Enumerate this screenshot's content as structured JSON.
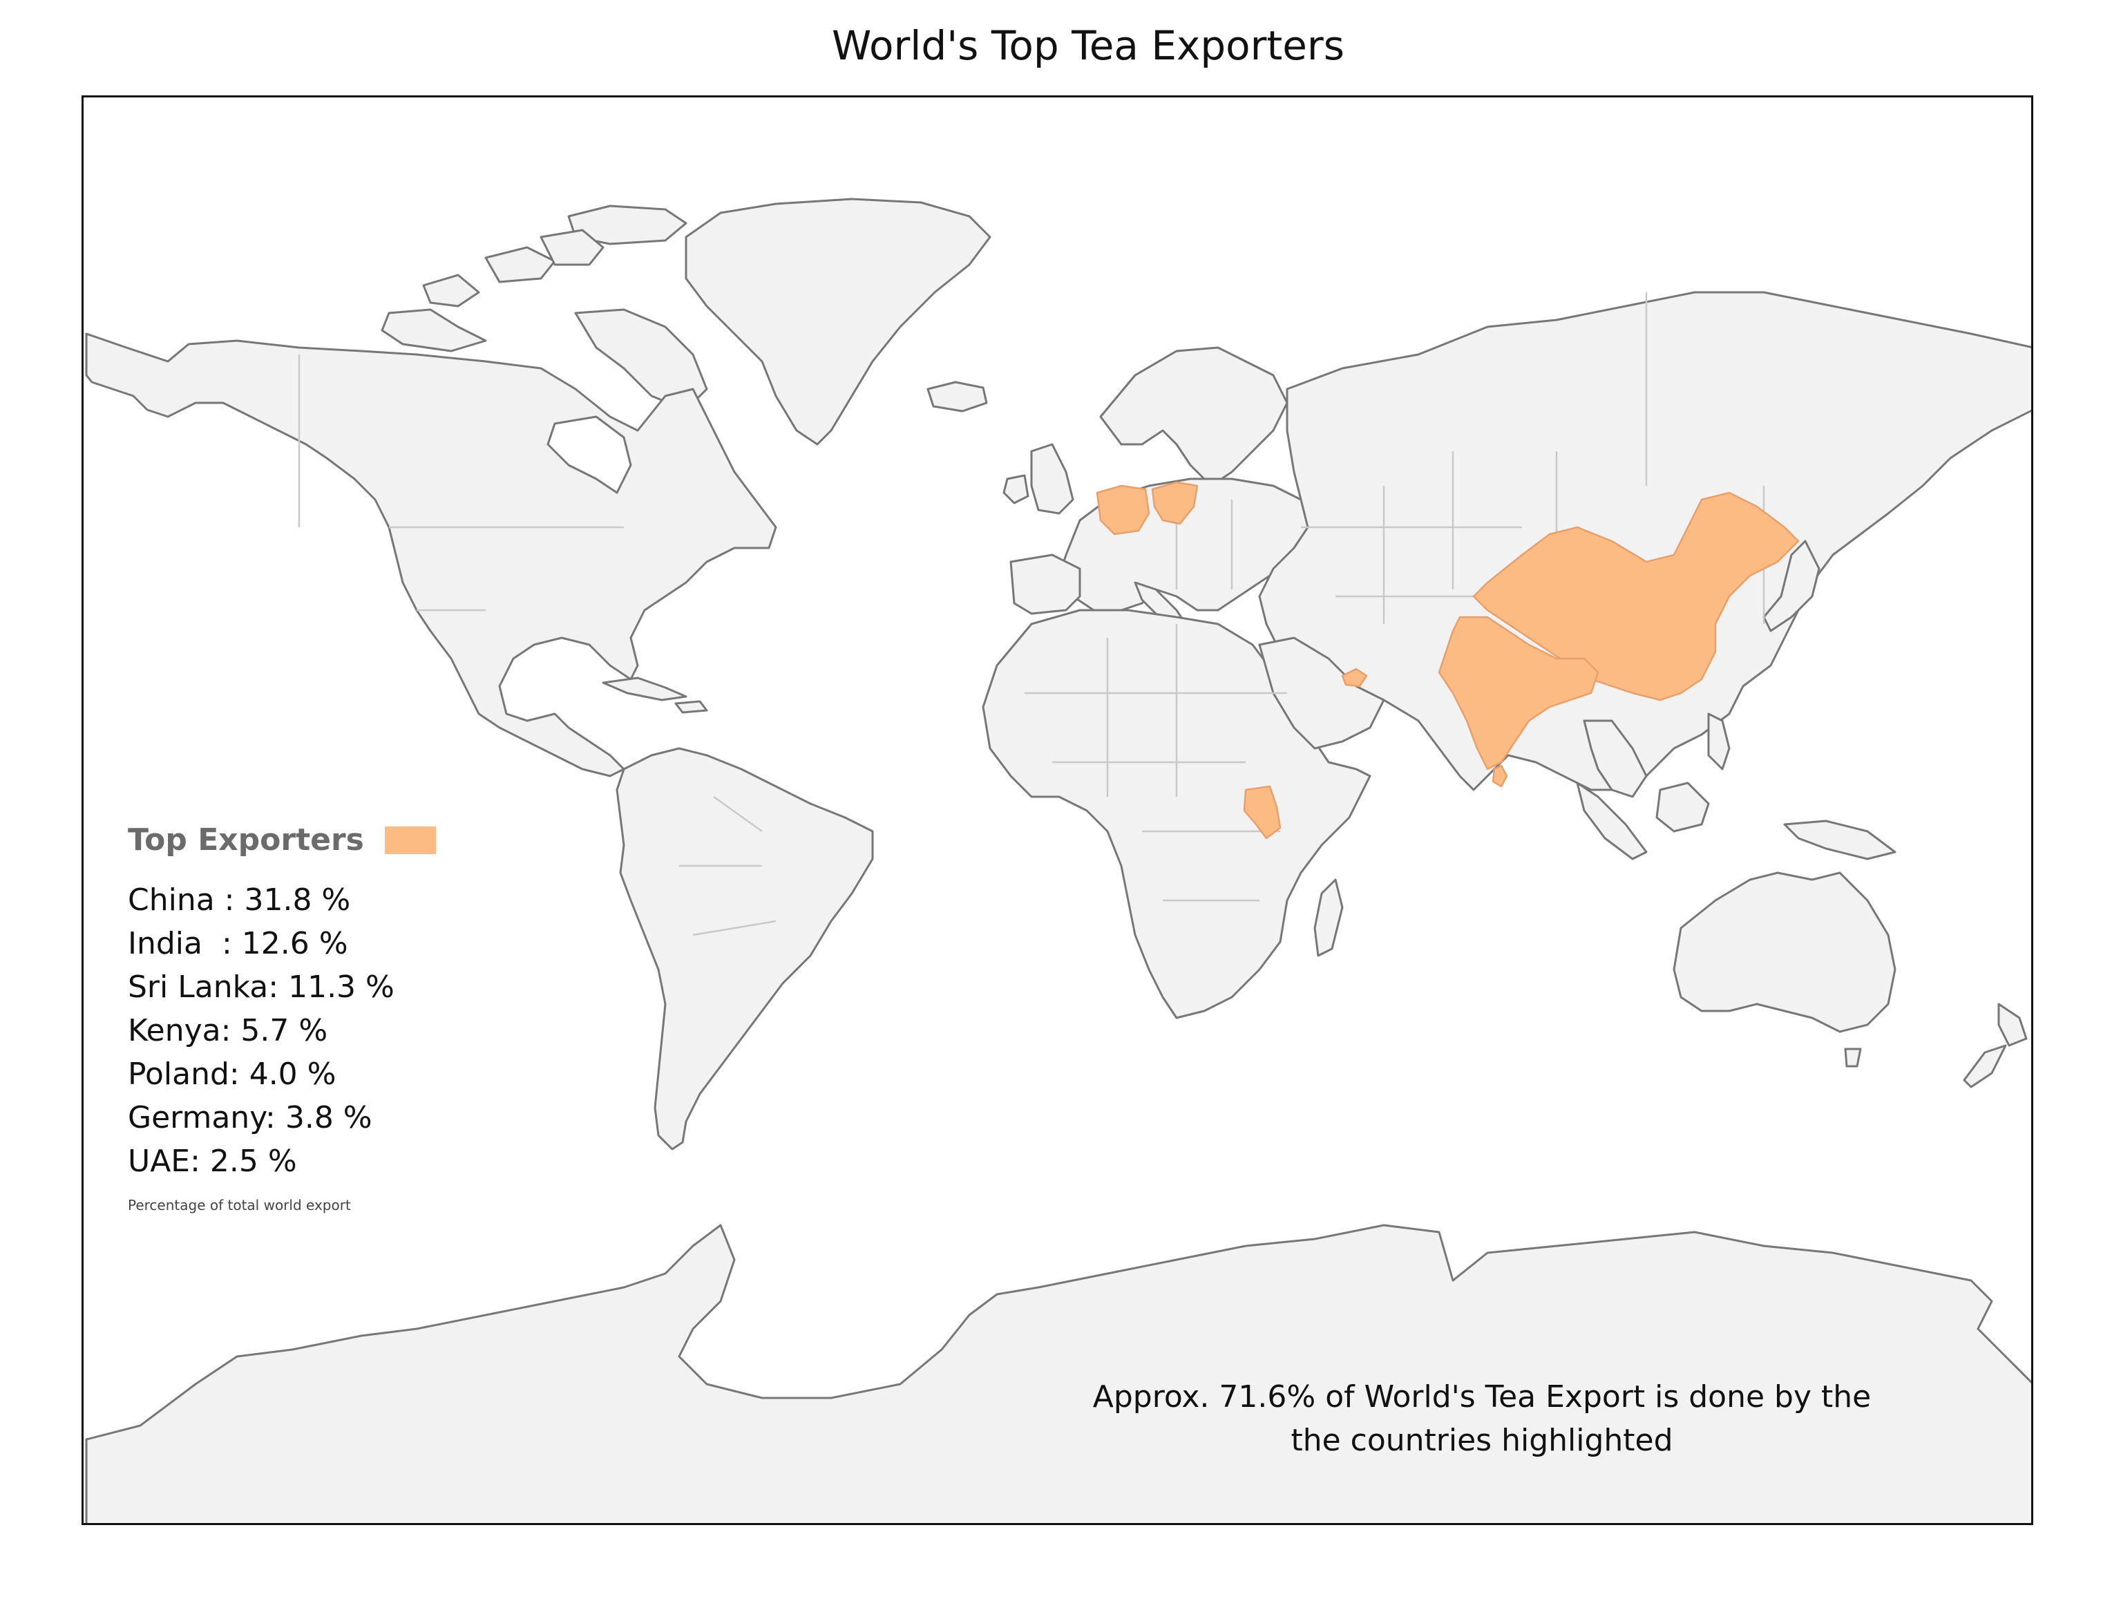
{
  "title": "World's Top Tea Exporters",
  "legend": {
    "title": "Top Exporters",
    "swatch_color": "#fdbb84",
    "items": [
      "China : 31.8 %",
      "India  : 12.6 %",
      "Sri Lanka: 11.3 %",
      "Kenya: 5.7 %",
      "Poland: 4.0 %",
      "Germany: 3.8 %",
      "UAE: 2.5 %"
    ],
    "note": "Percentage of total world export"
  },
  "annotation": {
    "line1": "Approx. 71.6% of World's Tea Export is done by the",
    "line2": "the countries highlighted"
  },
  "map": {
    "land_color": "#f2f2f2",
    "highlight_color": "#fdbb84",
    "highlighted_countries": [
      "China",
      "India",
      "Sri Lanka",
      "Kenya",
      "Poland",
      "Germany",
      "UAE"
    ]
  }
}
